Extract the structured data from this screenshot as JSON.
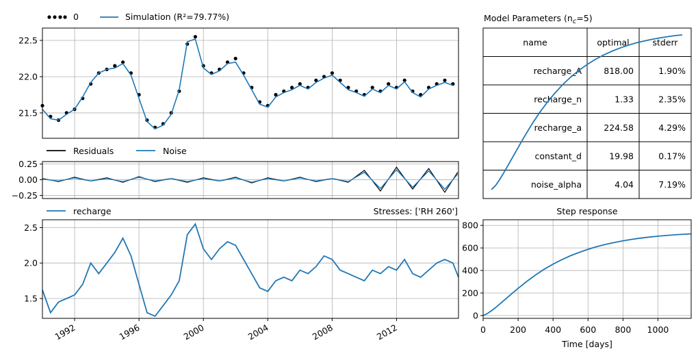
{
  "colors": {
    "sim": "#1f77b4",
    "obs": "#000000",
    "grid": "#b0b0b0",
    "axis": "#000000"
  },
  "chart_data": [
    {
      "id": "head",
      "type": "line",
      "legend": {
        "placement": "top-left",
        "obs_label": "0",
        "sim_label": "Simulation (R²=79.77%)"
      },
      "ylim": [
        21.15,
        22.67
      ],
      "yticks": [
        21.5,
        22.0,
        22.5
      ],
      "yticklabels": [
        "21.5",
        "22.0",
        "22.5"
      ],
      "xlim": [
        1990.0,
        2015.85
      ],
      "grid": true,
      "series": [
        {
          "name": "0",
          "style": "dots",
          "x": [
            1990.0,
            1990.5,
            1991.0,
            1991.5,
            1992.0,
            1992.5,
            1993.0,
            1993.5,
            1994.0,
            1994.5,
            1995.0,
            1995.5,
            1996.0,
            1996.5,
            1997.0,
            1997.5,
            1998.0,
            1998.5,
            1999.0,
            1999.5,
            2000.0,
            2000.5,
            2001.0,
            2001.5,
            2002.0,
            2002.5,
            2003.0,
            2003.5,
            2004.0,
            2004.5,
            2005.0,
            2005.5,
            2006.0,
            2006.5,
            2007.0,
            2007.5,
            2008.0,
            2008.5,
            2009.0,
            2009.5,
            2010.0,
            2010.5,
            2011.0,
            2011.5,
            2012.0,
            2012.5,
            2013.0,
            2013.5,
            2014.0,
            2014.5,
            2015.0,
            2015.5
          ],
          "values": [
            21.6,
            21.45,
            21.4,
            21.5,
            21.55,
            21.7,
            21.9,
            22.05,
            22.1,
            22.15,
            22.2,
            22.05,
            21.75,
            21.4,
            21.3,
            21.35,
            21.5,
            21.8,
            22.45,
            22.55,
            22.15,
            22.05,
            22.1,
            22.2,
            22.25,
            22.05,
            21.85,
            21.65,
            21.6,
            21.75,
            21.8,
            21.85,
            21.9,
            21.85,
            21.95,
            22.0,
            22.05,
            21.95,
            21.85,
            21.8,
            21.75,
            21.85,
            21.8,
            21.9,
            21.85,
            21.95,
            21.8,
            21.75,
            21.85,
            21.9,
            21.95,
            21.9
          ]
        },
        {
          "name": "Simulation",
          "style": "line",
          "x": [
            1990.0,
            1990.5,
            1991.0,
            1991.5,
            1992.0,
            1992.5,
            1993.0,
            1993.5,
            1994.0,
            1994.5,
            1995.0,
            1995.5,
            1996.0,
            1996.5,
            1997.0,
            1997.5,
            1998.0,
            1998.5,
            1999.0,
            1999.5,
            2000.0,
            2000.5,
            2001.0,
            2001.5,
            2002.0,
            2002.5,
            2003.0,
            2003.5,
            2004.0,
            2004.5,
            2005.0,
            2005.5,
            2006.0,
            2006.5,
            2007.0,
            2007.5,
            2008.0,
            2008.5,
            2009.0,
            2009.5,
            2010.0,
            2010.5,
            2011.0,
            2011.5,
            2012.0,
            2012.5,
            2013.0,
            2013.5,
            2014.0,
            2014.5,
            2015.0,
            2015.5
          ],
          "values": [
            21.55,
            21.42,
            21.4,
            21.48,
            21.55,
            21.72,
            21.92,
            22.05,
            22.1,
            22.12,
            22.18,
            22.02,
            21.7,
            21.38,
            21.28,
            21.33,
            21.48,
            21.82,
            22.48,
            22.52,
            22.12,
            22.03,
            22.08,
            22.18,
            22.2,
            22.02,
            21.82,
            21.62,
            21.58,
            21.72,
            21.78,
            21.82,
            21.88,
            21.83,
            21.92,
            21.98,
            22.02,
            21.92,
            21.82,
            21.78,
            21.73,
            21.83,
            21.78,
            21.88,
            21.83,
            21.93,
            21.78,
            21.72,
            21.83,
            21.88,
            21.92,
            21.88
          ]
        }
      ]
    },
    {
      "id": "residuals",
      "type": "line",
      "legend": {
        "placement": "top-left",
        "res_label": "Residuals",
        "noise_label": "Noise"
      },
      "ylim": [
        -0.3,
        0.29
      ],
      "yticks": [
        -0.25,
        0.0,
        0.25
      ],
      "yticklabels": [
        "−0.25",
        "0.00",
        "0.25"
      ],
      "xlim": [
        1990.0,
        2015.85
      ],
      "grid": true,
      "series": [
        {
          "name": "Residuals",
          "x": [
            1990.0,
            1991.0,
            1992.0,
            1993.0,
            1994.0,
            1995.0,
            1996.0,
            1997.0,
            1998.0,
            1999.0,
            2000.0,
            2001.0,
            2002.0,
            2003.0,
            2004.0,
            2005.0,
            2006.0,
            2007.0,
            2008.0,
            2009.0,
            2010.0,
            2011.0,
            2012.0,
            2013.0,
            2014.0,
            2015.0,
            2015.8
          ],
          "values": [
            0.02,
            -0.03,
            0.04,
            -0.02,
            0.03,
            -0.04,
            0.05,
            -0.03,
            0.02,
            -0.04,
            0.03,
            -0.02,
            0.04,
            -0.05,
            0.03,
            -0.02,
            0.04,
            -0.03,
            0.02,
            -0.04,
            0.15,
            -0.18,
            0.2,
            -0.15,
            0.18,
            -0.2,
            0.12
          ]
        },
        {
          "name": "Noise",
          "x": [
            1990.0,
            1991.0,
            1992.0,
            1993.0,
            1994.0,
            1995.0,
            1996.0,
            1997.0,
            1998.0,
            1999.0,
            2000.0,
            2001.0,
            2002.0,
            2003.0,
            2004.0,
            2005.0,
            2006.0,
            2007.0,
            2008.0,
            2009.0,
            2010.0,
            2011.0,
            2012.0,
            2013.0,
            2014.0,
            2015.0,
            2015.8
          ],
          "values": [
            0.01,
            -0.02,
            0.03,
            -0.02,
            0.02,
            -0.03,
            0.04,
            -0.02,
            0.02,
            -0.03,
            0.02,
            -0.02,
            0.03,
            -0.04,
            0.02,
            -0.02,
            0.03,
            -0.02,
            0.02,
            -0.03,
            0.12,
            -0.14,
            0.16,
            -0.12,
            0.14,
            -0.15,
            0.09
          ]
        }
      ]
    },
    {
      "id": "stresses",
      "type": "line",
      "legend": {
        "placement": "top-left",
        "label": "recharge"
      },
      "stresses_label": "Stresses: ['RH 260']",
      "ylim": [
        1.22,
        2.61
      ],
      "yticks": [
        1.5,
        2.0,
        2.5
      ],
      "yticklabels": [
        "1.5",
        "2.0",
        "2.5"
      ],
      "xlim": [
        1990.0,
        2015.85
      ],
      "xticks": [
        1992,
        1996,
        2000,
        2004,
        2008,
        2012
      ],
      "xticklabels": [
        "1992",
        "1996",
        "2000",
        "2004",
        "2008",
        "2012"
      ],
      "grid": true,
      "series": [
        {
          "name": "recharge",
          "x": [
            1990.0,
            1990.5,
            1991.0,
            1991.5,
            1992.0,
            1992.5,
            1993.0,
            1993.5,
            1994.0,
            1994.5,
            1995.0,
            1995.5,
            1996.0,
            1996.5,
            1997.0,
            1997.5,
            1998.0,
            1998.5,
            1999.0,
            1999.5,
            2000.0,
            2000.5,
            2001.0,
            2001.5,
            2002.0,
            2002.5,
            2003.0,
            2003.5,
            2004.0,
            2004.5,
            2005.0,
            2005.5,
            2006.0,
            2006.5,
            2007.0,
            2007.5,
            2008.0,
            2008.5,
            2009.0,
            2009.5,
            2010.0,
            2010.5,
            2011.0,
            2011.5,
            2012.0,
            2012.5,
            2013.0,
            2013.5,
            2014.0,
            2014.5,
            2015.0,
            2015.5,
            2015.85
          ],
          "values": [
            1.62,
            1.3,
            1.45,
            1.5,
            1.55,
            1.7,
            2.0,
            1.85,
            2.0,
            2.15,
            2.35,
            2.1,
            1.7,
            1.3,
            1.25,
            1.4,
            1.55,
            1.75,
            2.4,
            2.55,
            2.2,
            2.05,
            2.2,
            2.3,
            2.25,
            2.05,
            1.85,
            1.65,
            1.6,
            1.75,
            1.8,
            1.75,
            1.9,
            1.85,
            1.95,
            2.1,
            2.05,
            1.9,
            1.85,
            1.8,
            1.75,
            1.9,
            1.85,
            1.95,
            1.9,
            2.05,
            1.85,
            1.8,
            1.9,
            2.0,
            2.05,
            2.0,
            1.8
          ]
        }
      ]
    },
    {
      "id": "step",
      "type": "line",
      "title": "Step response",
      "xlabel": "Time [days]",
      "xlim": [
        0,
        1190
      ],
      "ylim": [
        -25,
        850
      ],
      "xticks": [
        0,
        200,
        400,
        600,
        800,
        1000
      ],
      "xticklabels": [
        "0",
        "200",
        "400",
        "600",
        "800",
        "1000"
      ],
      "yticks": [
        0,
        200,
        400,
        600,
        800
      ],
      "yticklabels": [
        "0",
        "200",
        "400",
        "600",
        "800"
      ],
      "grid": true,
      "series": [
        {
          "name": "step",
          "x": [
            0,
            25,
            50,
            75,
            100,
            150,
            200,
            250,
            300,
            350,
            400,
            450,
            500,
            550,
            600,
            650,
            700,
            750,
            800,
            850,
            900,
            950,
            1000,
            1050,
            1100,
            1150,
            1190
          ],
          "values": [
            0,
            18,
            45,
            76,
            108,
            175,
            241,
            303,
            360,
            411,
            456,
            496,
            531,
            561,
            588,
            611,
            631,
            648,
            663,
            676,
            687,
            696,
            704,
            711,
            717,
            722,
            725
          ]
        }
      ]
    }
  ],
  "params_table": {
    "title": "Model Parameters (n",
    "title_sub": "c",
    "title_tail": "=5)",
    "headers": [
      "name",
      "optimal",
      "stderr"
    ],
    "rows": [
      [
        "recharge_A",
        "818.00",
        "1.90%"
      ],
      [
        "recharge_n",
        "1.33",
        "2.35%"
      ],
      [
        "recharge_a",
        "224.58",
        "4.29%"
      ],
      [
        "constant_d",
        "19.98",
        "0.17%"
      ],
      [
        "noise_alpha",
        "4.04",
        "7.19%"
      ]
    ]
  }
}
